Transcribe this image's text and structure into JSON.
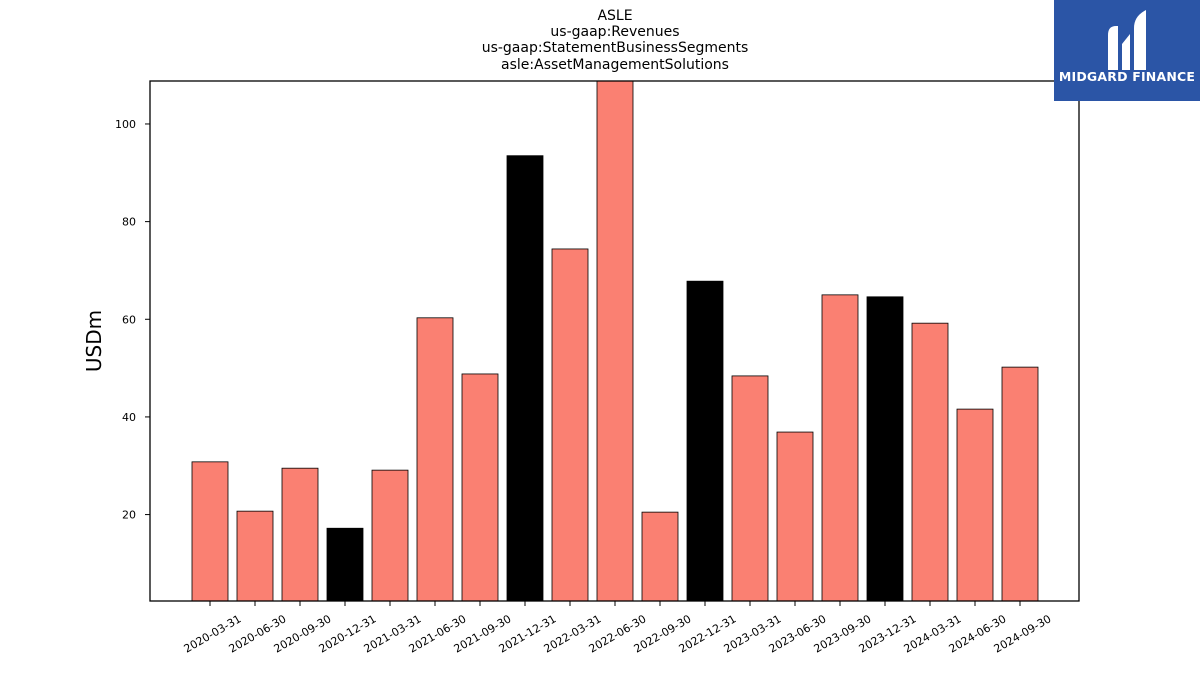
{
  "chart_data": {
    "type": "bar",
    "title_lines": [
      "ASLE",
      "us-gaap:Revenues",
      "us-gaap:StatementBusinessSegments",
      "asle:AssetManagementSolutions"
    ],
    "ylabel": "USDm",
    "xlabel": "",
    "ylim": [
      2.3,
      108.8
    ],
    "yticks": [
      20,
      40,
      60,
      80,
      100
    ],
    "grid": false,
    "categories": [
      "2020-03-31",
      "2020-06-30",
      "2020-09-30",
      "2020-12-31",
      "2021-03-31",
      "2021-06-30",
      "2021-09-30",
      "2021-12-31",
      "2022-03-31",
      "2022-06-30",
      "2022-09-30",
      "2022-12-31",
      "2023-03-31",
      "2023-06-30",
      "2023-09-30",
      "2023-12-31",
      "2024-03-31",
      "2024-06-30",
      "2024-09-30"
    ],
    "values": [
      30.8,
      20.7,
      29.5,
      17.2,
      29.1,
      60.3,
      48.8,
      93.5,
      74.4,
      109.0,
      20.5,
      67.8,
      48.4,
      36.9,
      65.0,
      64.6,
      59.2,
      41.6,
      50.2
    ],
    "highlight": [
      false,
      false,
      false,
      true,
      false,
      false,
      false,
      true,
      false,
      false,
      false,
      true,
      false,
      false,
      false,
      true,
      false,
      false,
      false
    ],
    "colors": {
      "default": "#fa8072",
      "highlight": "#000000",
      "edge": "#000000"
    }
  },
  "logo": {
    "text": "MIDGARD FINANCE",
    "background": "#2b55a6"
  }
}
